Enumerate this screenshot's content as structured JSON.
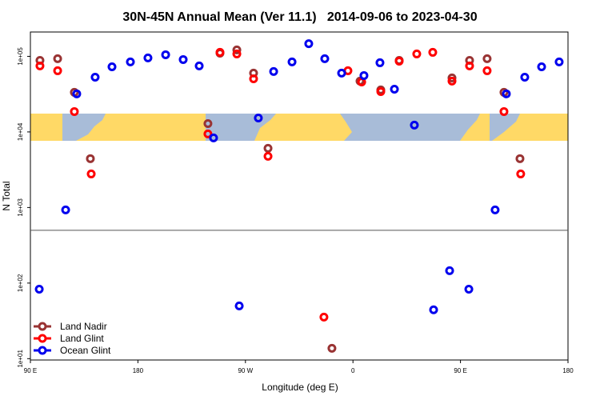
{
  "chart_data": {
    "type": "scatter",
    "title": "30N-45N Annual Mean (Ver 11.1)   2014-09-06 to 2023-04-30",
    "xlabel": "Longitude (deg E)",
    "ylabel": "N Total",
    "xlim": [
      90,
      540
    ],
    "ylim": [
      9.6,
      210000
    ],
    "log_y": true,
    "xticks": [
      {
        "value": 90,
        "label": "90 E"
      },
      {
        "value": 180,
        "label": "180"
      },
      {
        "value": 270,
        "label": "90 W"
      },
      {
        "value": 360,
        "label": "0"
      },
      {
        "value": 450,
        "label": "90 E"
      },
      {
        "value": 540,
        "label": "180"
      }
    ],
    "yticks": [
      {
        "value": 10,
        "label": "1e+01"
      },
      {
        "value": 100,
        "label": "1e+02"
      },
      {
        "value": 1000,
        "label": "1e+03"
      },
      {
        "value": 10000,
        "label": "1e+04"
      },
      {
        "value": 100000,
        "label": "1e+05"
      }
    ],
    "hline": 500,
    "legend": "lower left",
    "series": [
      {
        "name": "Land Nadir",
        "color": "#993333",
        "x": [
          98.0,
          112.8,
          126.8,
          140.2,
          238.6,
          248.7,
          262.8,
          276.8,
          288.9,
          342.4,
          365.9,
          383.3,
          398.7,
          442.9,
          457.6,
          472.3,
          486.4,
          499.8
        ],
        "values": [
          88500,
          93000,
          33400,
          4430,
          12900,
          110000,
          121600,
          60000,
          6070,
          13.7,
          47000,
          36000,
          88500,
          51800,
          88500,
          93000,
          33400,
          4430
        ]
      },
      {
        "name": "Land Glint",
        "color": "#ff0000",
        "x": [
          98.0,
          112.8,
          126.8,
          140.9,
          238.6,
          248.7,
          262.8,
          276.8,
          288.9,
          335.7,
          355.8,
          367.3,
          383.3,
          398.7,
          413.4,
          426.8,
          442.9,
          457.6,
          472.3,
          486.4,
          500.4
        ],
        "values": [
          74700,
          64500,
          18600,
          2780,
          9420,
          113000,
          107600,
          50500,
          4760,
          35.5,
          64500,
          45800,
          34200,
          86400,
          107600,
          113000,
          47000,
          74700,
          64500,
          18600,
          2780
        ]
      },
      {
        "name": "Ocean Glint",
        "color": "#0000ee",
        "x": [
          97.4,
          119.5,
          128.8,
          144.2,
          158.3,
          173.7,
          188.4,
          203.2,
          217.9,
          231.3,
          243.3,
          264.8,
          280.8,
          293.6,
          309.0,
          323.0,
          336.4,
          350.5,
          369.2,
          382.6,
          394.7,
          411.4,
          427.5,
          440.9,
          457.0,
          479.0,
          488.4,
          503.8,
          517.9,
          532.6
        ],
        "values": [
          83,
          930,
          31900,
          53000,
          72800,
          84400,
          95300,
          105000,
          90700,
          74700,
          8340,
          49.9,
          15300,
          63000,
          84400,
          147000,
          93000,
          60000,
          55700,
          82300,
          36800,
          12300,
          44.3,
          146,
          83,
          930,
          31900,
          53000,
          72800,
          84400
        ]
      }
    ]
  }
}
